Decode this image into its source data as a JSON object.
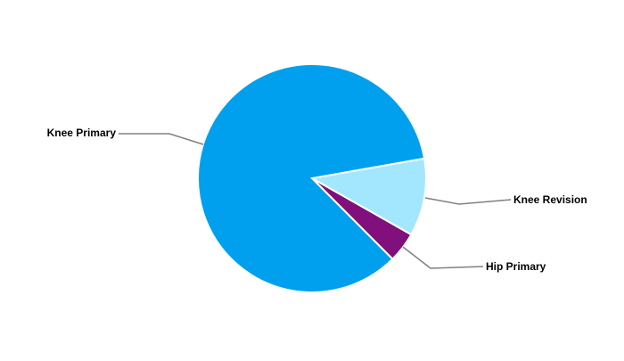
{
  "chart_data": {
    "type": "pie",
    "title": "",
    "categories": [
      "Knee Revision",
      "Hip Primary",
      "Knee Primary"
    ],
    "values": [
      11,
      4.3,
      84.7
    ],
    "colors": [
      "#A3E7FF",
      "#810F7C",
      "#00A0EE"
    ],
    "legend": "none",
    "labels": "outside with leader lines"
  }
}
